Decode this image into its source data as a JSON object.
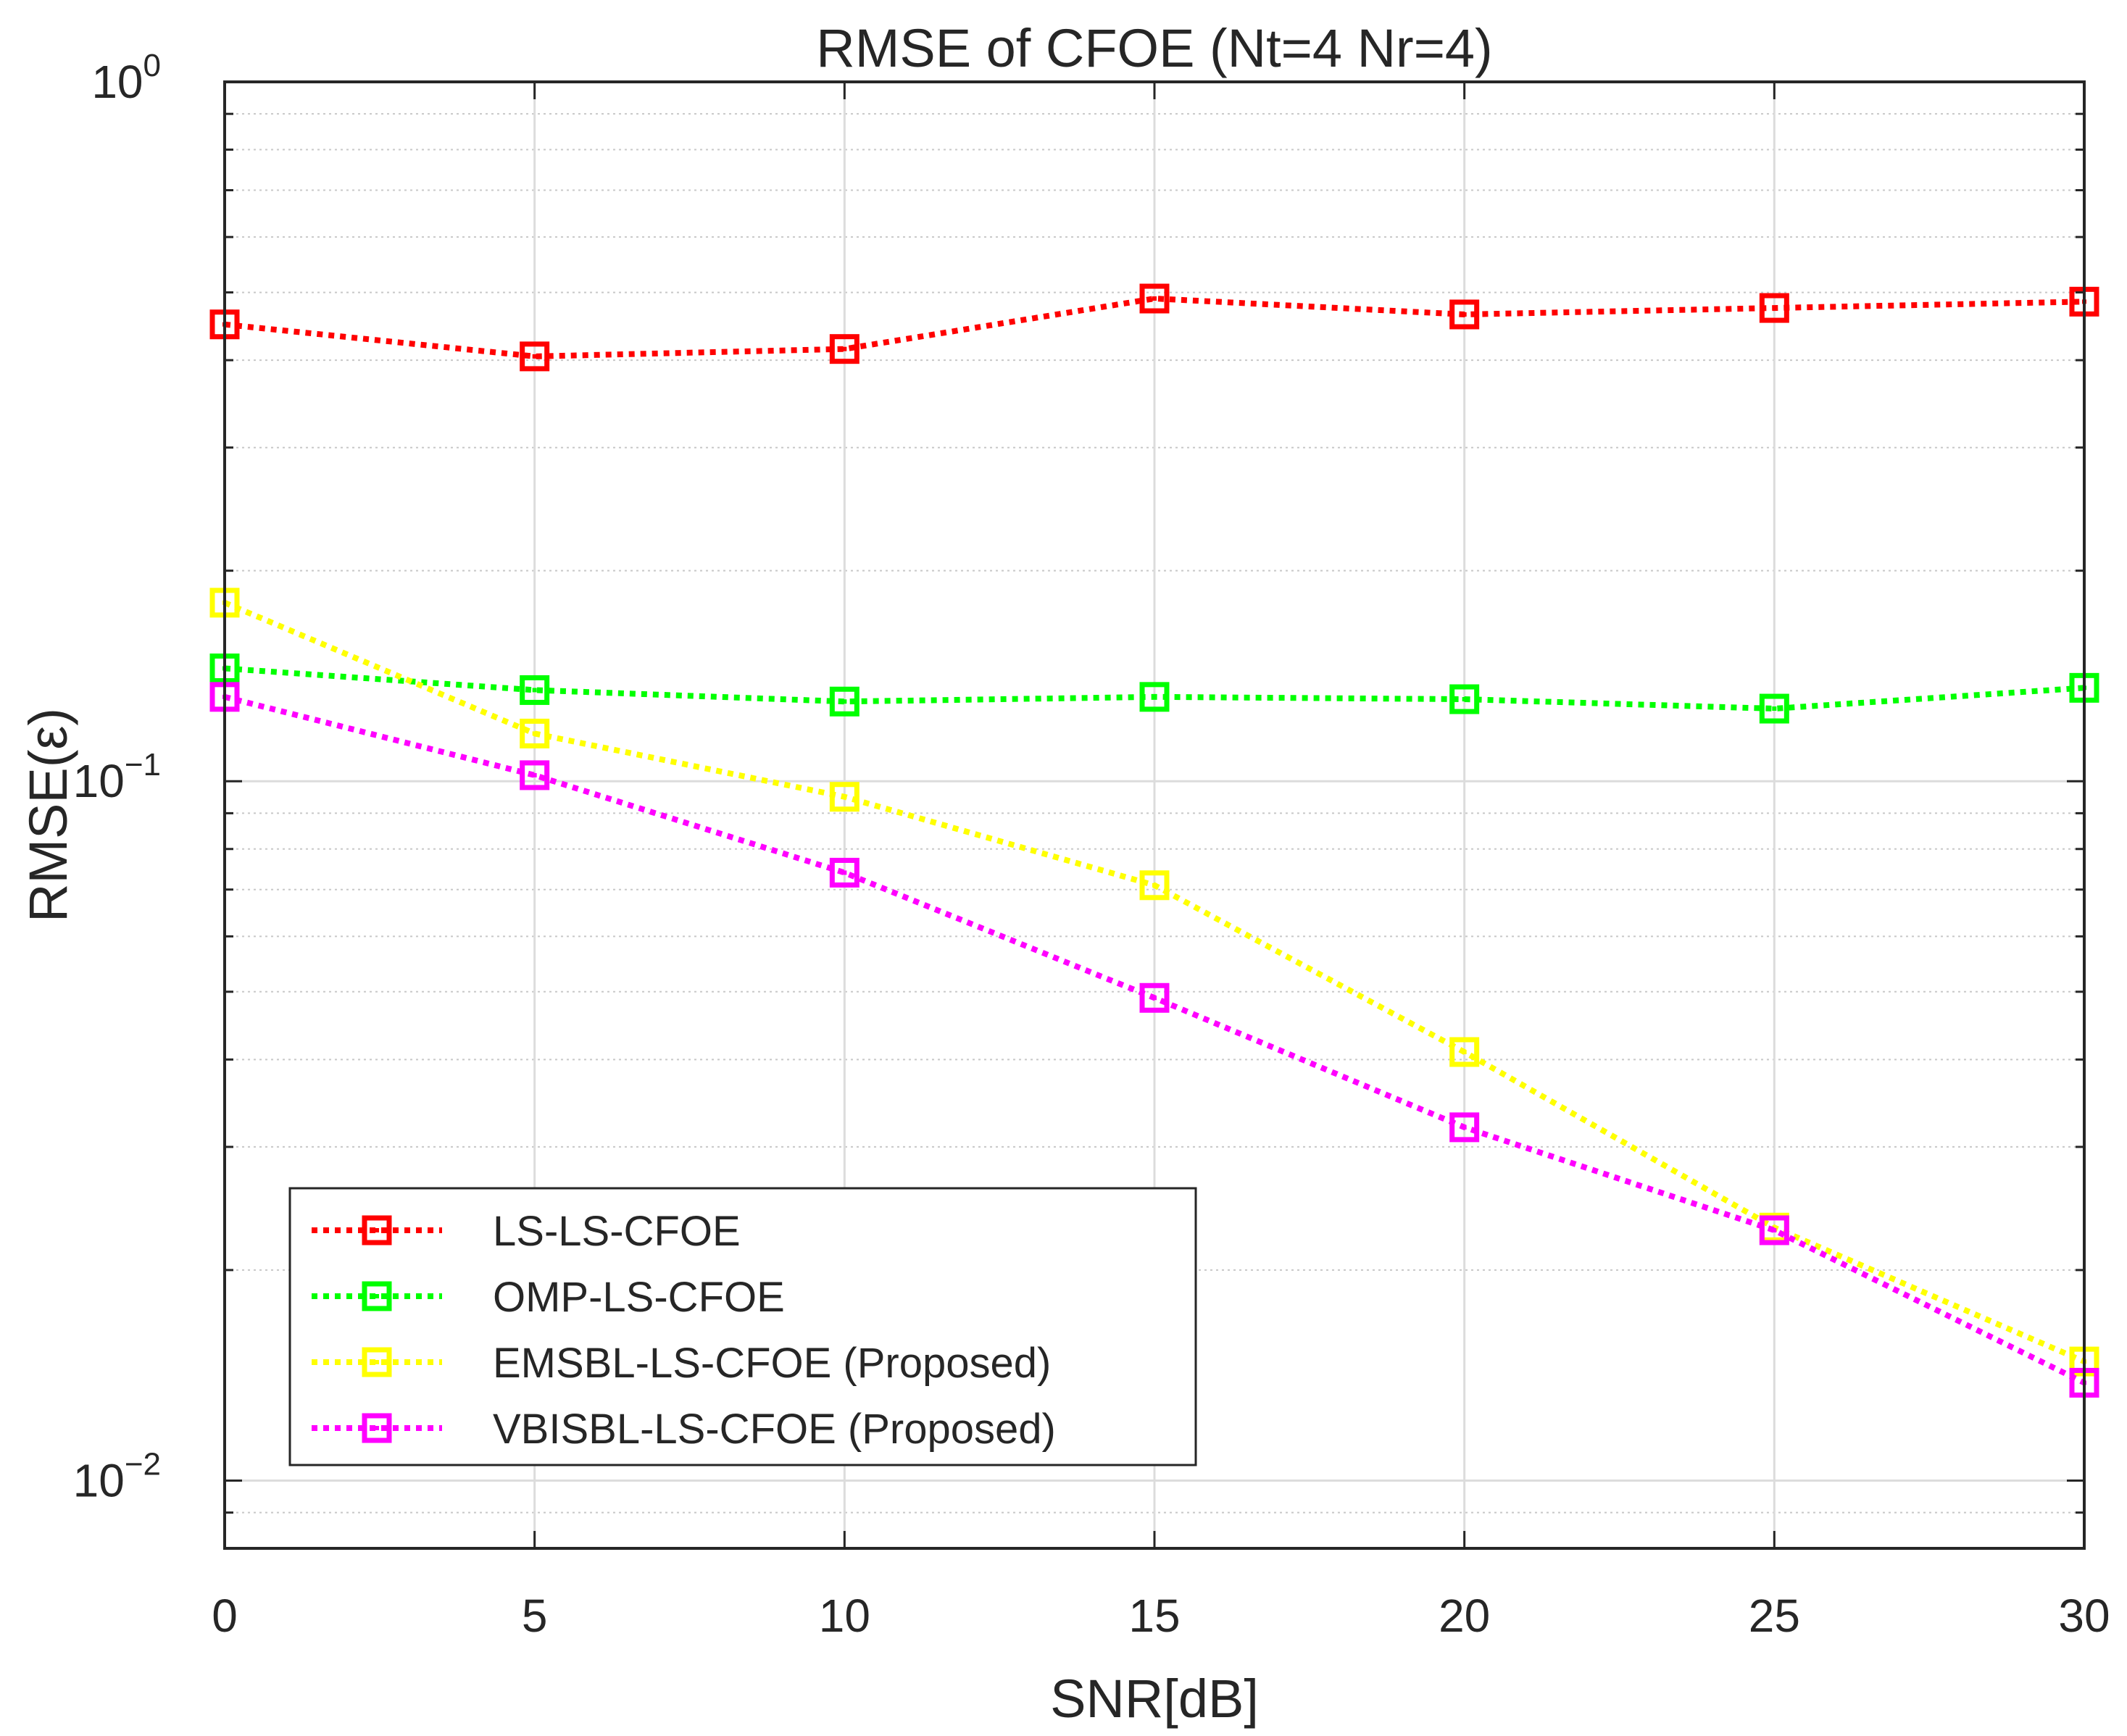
{
  "chart_data": {
    "type": "line",
    "title": "RMSE of CFOE (Nt=4 Nr=4)",
    "xlabel": "SNR[dB]",
    "ylabel": "RMSE(ε)",
    "xlim": [
      0,
      30
    ],
    "ylim": [
      0.008,
      1
    ],
    "yscale": "log",
    "x_ticks": [
      0,
      5,
      10,
      15,
      20,
      25,
      30
    ],
    "y_ticks": [
      {
        "value": 1,
        "base": "10",
        "exp": "0"
      },
      {
        "value": 0.1,
        "base": "10",
        "exp": "−1"
      },
      {
        "value": 0.01,
        "base": "10",
        "exp": "−2"
      }
    ],
    "grid": true,
    "minor_grid": true,
    "legend_position": "bottom-left",
    "x": [
      0,
      5,
      10,
      15,
      20,
      25,
      30
    ],
    "series": [
      {
        "name": "LS-LS-CFOE",
        "color": "#ff0000",
        "marker": "square",
        "line": "dotted",
        "values": [
          0.45,
          0.405,
          0.415,
          0.49,
          0.465,
          0.475,
          0.485
        ]
      },
      {
        "name": "OMP-LS-CFOE",
        "color": "#00ff00",
        "marker": "square",
        "line": "dotted",
        "values": [
          0.145,
          0.135,
          0.13,
          0.132,
          0.131,
          0.127,
          0.136
        ]
      },
      {
        "name": "EMSBL-LS-CFOE (Proposed)",
        "color": "#ffff00",
        "marker": "square",
        "line": "dotted",
        "values": [
          0.18,
          0.117,
          0.095,
          0.071,
          0.041,
          0.023,
          0.0148
        ]
      },
      {
        "name": "VBISBL-LS-CFOE (Proposed)",
        "color": "#ff00ff",
        "marker": "square",
        "line": "dotted",
        "values": [
          0.132,
          0.102,
          0.074,
          0.049,
          0.032,
          0.0228,
          0.0138
        ]
      }
    ]
  }
}
